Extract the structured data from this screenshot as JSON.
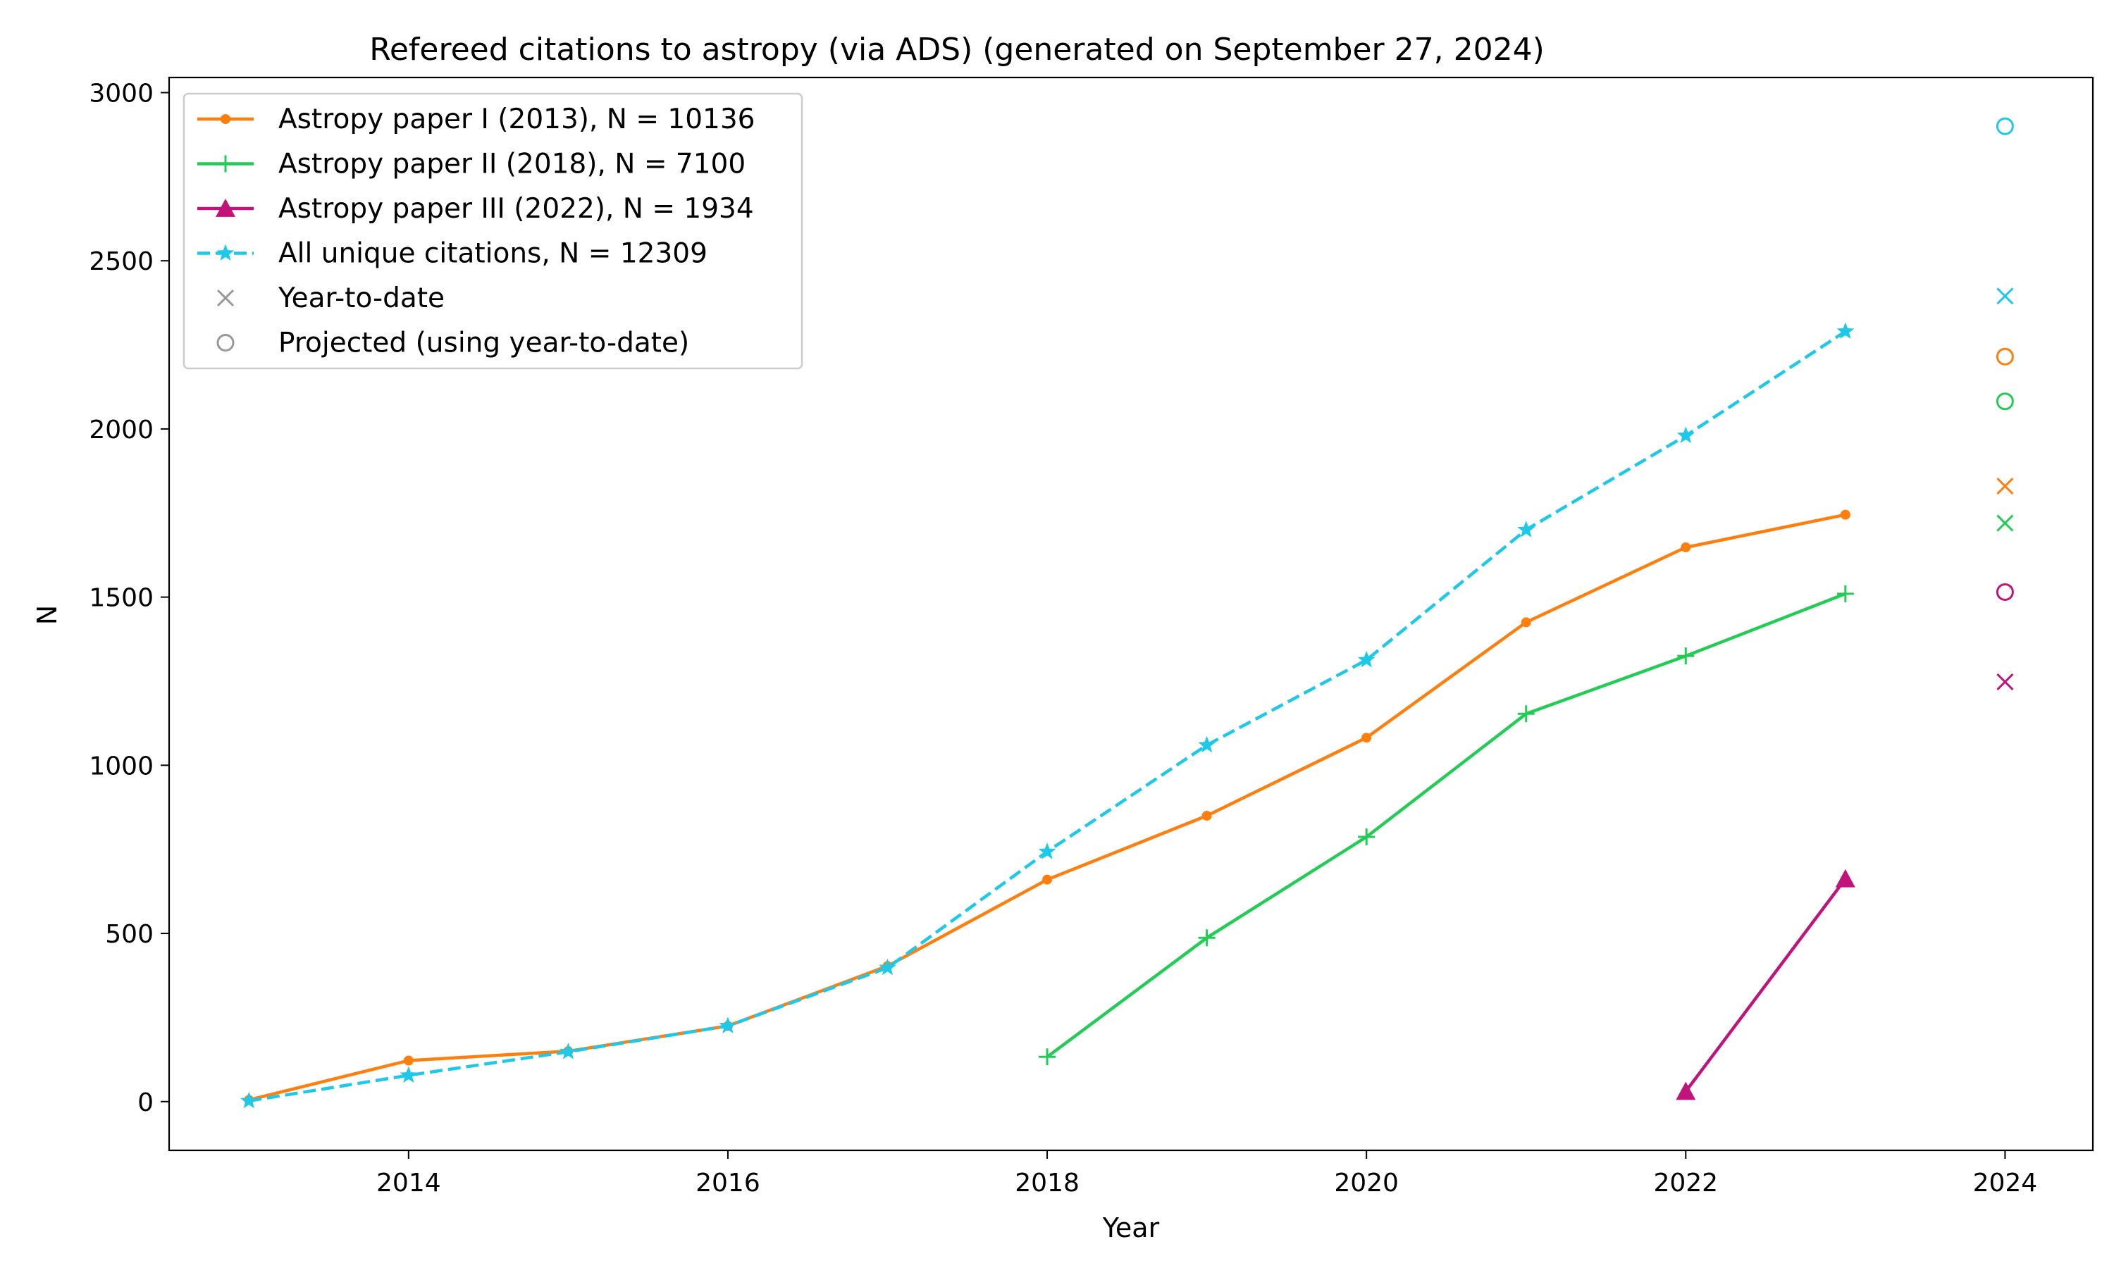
{
  "chart_data": {
    "type": "line",
    "title": "Refereed citations to astropy (via ADS) (generated on September 27, 2024)",
    "xlabel": "Year",
    "ylabel": "N",
    "xlim": [
      2012.5,
      2024.55
    ],
    "ylim": [
      -145,
      3045
    ],
    "xticks": [
      2014,
      2016,
      2018,
      2020,
      2022,
      2024
    ],
    "yticks": [
      0,
      500,
      1000,
      1500,
      2000,
      2500,
      3000
    ],
    "grid": false,
    "legend_position": "top-left",
    "series": [
      {
        "name": "Astropy paper I (2013), N = 10136",
        "color": "#ff7f0e",
        "marker": "dot",
        "linestyle": "solid",
        "x": [
          2013,
          2014,
          2015,
          2016,
          2017,
          2018,
          2019,
          2020,
          2021,
          2022,
          2023
        ],
        "y": [
          5,
          122,
          150,
          225,
          403,
          660,
          850,
          1082,
          1425,
          1648,
          1745
        ],
        "year_to_date": 1830,
        "projected": 2215
      },
      {
        "name": "Astropy paper II (2018), N = 7100",
        "color": "#22cc55",
        "marker": "plus",
        "linestyle": "solid",
        "x": [
          2018,
          2019,
          2020,
          2021,
          2022,
          2023
        ],
        "y": [
          133,
          487,
          787,
          1153,
          1325,
          1510
        ],
        "year_to_date": 1720,
        "projected": 2082
      },
      {
        "name": "Astropy paper III (2022), N = 1934",
        "color": "#c0147a",
        "marker": "triangle",
        "linestyle": "solid",
        "x": [
          2022,
          2023
        ],
        "y": [
          30,
          662
        ],
        "year_to_date": 1248,
        "projected": 1515
      },
      {
        "name": "All unique citations, N = 12309",
        "color": "#1ec8e8",
        "marker": "star",
        "linestyle": "dashed",
        "x": [
          2013,
          2014,
          2015,
          2016,
          2017,
          2018,
          2019,
          2020,
          2021,
          2022,
          2023
        ],
        "y": [
          2,
          78,
          148,
          225,
          398,
          743,
          1060,
          1313,
          1700,
          1980,
          2290
        ],
        "year_to_date": 2395,
        "projected": 2900
      }
    ],
    "extra_x": 2024,
    "legend_extra": [
      {
        "name": "Year-to-date",
        "marker": "x",
        "color": "#999999"
      },
      {
        "name": "Projected (using year-to-date)",
        "marker": "circle",
        "color": "#999999"
      }
    ]
  }
}
